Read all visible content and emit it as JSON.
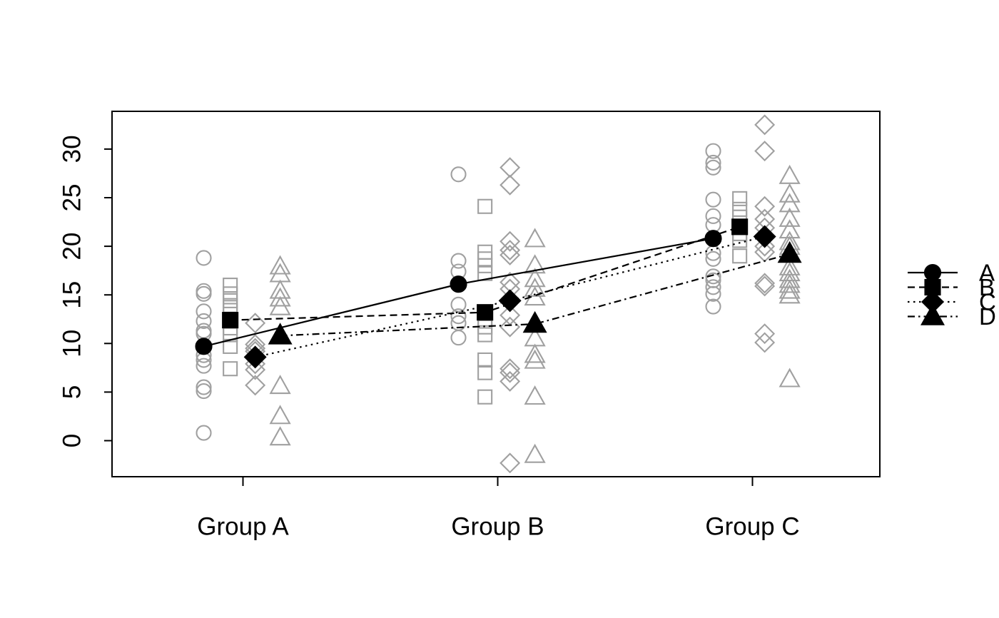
{
  "page": {
    "background": "#ffffff"
  },
  "chart_data": {
    "type": "scatter",
    "title": "",
    "xlabel": "",
    "ylabel": "",
    "categories": [
      "Group A",
      "Group B",
      "Group C"
    ],
    "y_ticks": [
      0,
      5,
      10,
      15,
      20,
      25,
      30
    ],
    "y_tick_labels": [
      "0",
      "5",
      "10",
      "15",
      "20",
      "25",
      "30"
    ],
    "ylim": [
      -3.7,
      33.9
    ],
    "xlim": [
      0.49,
      3.5
    ],
    "grid": false,
    "legend": {
      "position": "right-outside",
      "labels": [
        "A",
        "B",
        "C",
        "D"
      ]
    },
    "style": {
      "point_color": "#a0a0a0",
      "mean_color": "#000000",
      "axis_color": "#000000",
      "background": "#ffffff"
    },
    "series": [
      {
        "name": "A",
        "symbol": "circle",
        "linetype": "solid",
        "x_offset": -0.154,
        "means": [
          9.7,
          16.1,
          20.8
        ],
        "points": [
          [
            18.8,
            15.4,
            15.1,
            13.3,
            12.3,
            11.3,
            11.0,
            8.8,
            8.3,
            7.7,
            5.5,
            5.1,
            0.8
          ],
          [
            27.4,
            18.5,
            17.4,
            14.0,
            12.8,
            12.1,
            10.6
          ],
          [
            29.8,
            28.6,
            28.1,
            24.8,
            23.1,
            22.2,
            19.3,
            18.7,
            16.9,
            16.5,
            15.8,
            15.1,
            13.8
          ]
        ]
      },
      {
        "name": "B",
        "symbol": "square",
        "linetype": "dashed",
        "x_offset": -0.05,
        "means": [
          12.4,
          13.2,
          22.0
        ],
        "points": [
          [
            16.0,
            15.1,
            14.4,
            13.9,
            13.4,
            11.6,
            10.9,
            9.7,
            7.4
          ],
          [
            24.1,
            19.4,
            18.7,
            18.0,
            17.2,
            12.5,
            11.7,
            10.9,
            8.3,
            7.0,
            4.5
          ],
          [
            24.9,
            23.8,
            23.0,
            21.3,
            20.6,
            19.0
          ]
        ]
      },
      {
        "name": "C",
        "symbol": "diamond",
        "linetype": "dotted",
        "x_offset": 0.048,
        "means": [
          8.6,
          14.4,
          21.0
        ],
        "points": [
          [
            12.1,
            9.9,
            9.5,
            9.2,
            7.9,
            7.3,
            5.7
          ],
          [
            28.1,
            26.3,
            20.5,
            19.6,
            19.1,
            16.3,
            15.6,
            12.9,
            11.7,
            7.4,
            7.0,
            6.1,
            -2.3
          ],
          [
            32.5,
            29.8,
            24.1,
            22.8,
            21.9,
            20.0,
            19.4,
            16.2,
            15.9,
            11.0,
            10.1
          ]
        ]
      },
      {
        "name": "D",
        "symbol": "triangle",
        "linetype": "dashdot",
        "x_offset": 0.146,
        "means": [
          10.8,
          12.0,
          19.2
        ],
        "points": [
          [
            17.9,
            17.1,
            15.4,
            14.6,
            13.7,
            5.6,
            2.5,
            0.3
          ],
          [
            20.7,
            18.0,
            16.6,
            15.6,
            14.7,
            10.5,
            8.8,
            8.2,
            4.5,
            -1.5
          ],
          [
            27.2,
            25.3,
            24.3,
            22.8,
            21.6,
            20.4,
            19.9,
            17.8,
            17.2,
            16.5,
            16.0,
            15.4,
            14.9,
            6.3
          ]
        ]
      }
    ]
  }
}
